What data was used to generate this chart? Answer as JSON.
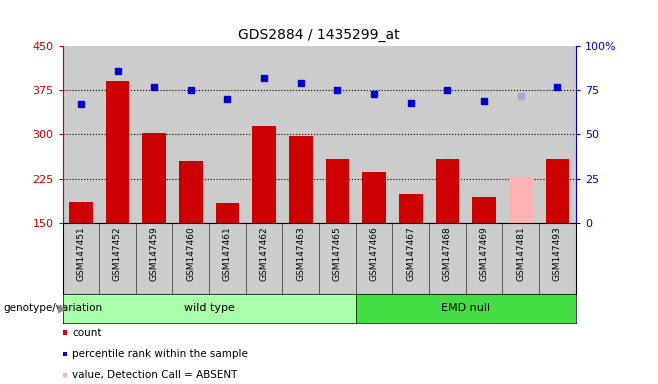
{
  "title": "GDS2884 / 1435299_at",
  "samples": [
    "GSM147451",
    "GSM147452",
    "GSM147459",
    "GSM147460",
    "GSM147461",
    "GSM147462",
    "GSM147463",
    "GSM147465",
    "GSM147466",
    "GSM147467",
    "GSM147468",
    "GSM147469",
    "GSM147481",
    "GSM147493"
  ],
  "counts": [
    185,
    390,
    302,
    255,
    183,
    315,
    298,
    258,
    236,
    198,
    258,
    193,
    228,
    258
  ],
  "percentile_ranks": [
    67,
    86,
    77,
    75,
    70,
    82,
    79,
    75,
    73,
    68,
    75,
    69,
    72,
    77
  ],
  "absent_flags": [
    false,
    false,
    false,
    false,
    false,
    false,
    false,
    false,
    false,
    false,
    false,
    false,
    true,
    false
  ],
  "wild_type_count": 8,
  "emd_null_count": 6,
  "ylim_left": [
    150,
    450
  ],
  "ylim_right": [
    0,
    100
  ],
  "yticks_left": [
    150,
    225,
    300,
    375,
    450
  ],
  "yticks_right": [
    0,
    25,
    50,
    75,
    100
  ],
  "bar_color": "#cc0000",
  "bar_color_absent": "#ffb3b3",
  "dot_color": "#0000cc",
  "dot_color_absent": "#aaaacc",
  "wild_type_color": "#aaffaa",
  "emd_null_color": "#44dd44",
  "axis_bg_color": "#cccccc",
  "label_left_color": "#cc0000",
  "label_right_color": "#0000cc"
}
